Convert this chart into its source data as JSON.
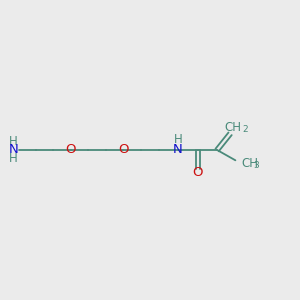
{
  "bg_color": "#ebebeb",
  "bond_color": "#4a8a7a",
  "atom_color_N": "#1010cc",
  "atom_color_O": "#cc1010",
  "atom_color_C": "#4a8a7a",
  "bond_width": 1.3,
  "font_size": 8.5,
  "font_size_sub": 6.5,
  "chain_y": 5.0,
  "xlim": [
    0,
    10
  ],
  "ylim": [
    0,
    10
  ]
}
